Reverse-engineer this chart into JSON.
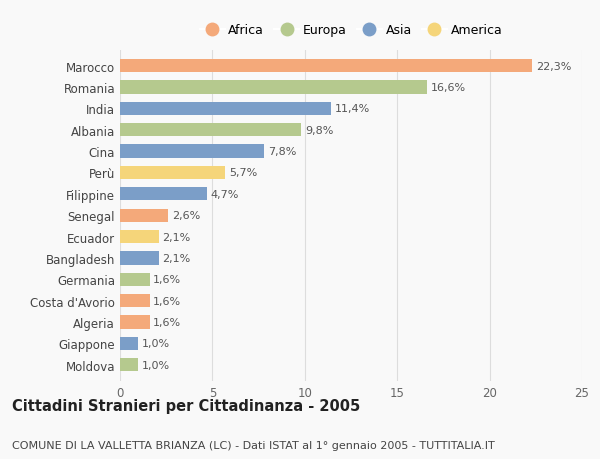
{
  "countries": [
    "Marocco",
    "Romania",
    "India",
    "Albania",
    "Cina",
    "Perù",
    "Filippine",
    "Senegal",
    "Ecuador",
    "Bangladesh",
    "Germania",
    "Costa d'Avorio",
    "Algeria",
    "Giappone",
    "Moldova"
  ],
  "values": [
    22.3,
    16.6,
    11.4,
    9.8,
    7.8,
    5.7,
    4.7,
    2.6,
    2.1,
    2.1,
    1.6,
    1.6,
    1.6,
    1.0,
    1.0
  ],
  "labels": [
    "22,3%",
    "16,6%",
    "11,4%",
    "9,8%",
    "7,8%",
    "5,7%",
    "4,7%",
    "2,6%",
    "2,1%",
    "2,1%",
    "1,6%",
    "1,6%",
    "1,6%",
    "1,0%",
    "1,0%"
  ],
  "continents": [
    "Africa",
    "Europa",
    "Asia",
    "Europa",
    "Asia",
    "America",
    "Asia",
    "Africa",
    "America",
    "Asia",
    "Europa",
    "Africa",
    "Africa",
    "Asia",
    "Europa"
  ],
  "continent_colors": {
    "Africa": "#F4A97A",
    "Europa": "#B5C98E",
    "Asia": "#7B9EC8",
    "America": "#F5D57A"
  },
  "legend_order": [
    "Africa",
    "Europa",
    "Asia",
    "America"
  ],
  "title": "Cittadini Stranieri per Cittadinanza - 2005",
  "subtitle": "COMUNE DI LA VALLETTA BRIANZA (LC) - Dati ISTAT al 1° gennaio 2005 - TUTTITALIA.IT",
  "xlim": [
    0,
    25
  ],
  "xticks": [
    0,
    5,
    10,
    15,
    20,
    25
  ],
  "background_color": "#f9f9f9",
  "grid_color": "#dddddd",
  "bar_height": 0.62,
  "title_fontsize": 10.5,
  "subtitle_fontsize": 8.0,
  "label_fontsize": 8.0,
  "tick_fontsize": 8.5,
  "legend_fontsize": 9.0
}
